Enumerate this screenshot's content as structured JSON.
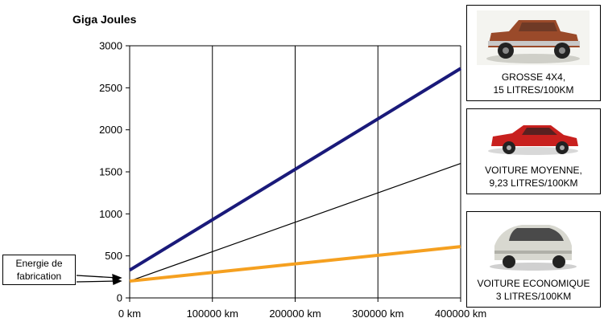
{
  "chart_data": {
    "type": "line",
    "ylabel": "Giga Joules",
    "xlabel": "",
    "ylim": [
      0,
      3000
    ],
    "xlim": [
      0,
      400000
    ],
    "y_ticks": [
      "0",
      "500",
      "1000",
      "1500",
      "2000",
      "2500",
      "3000"
    ],
    "x_ticks": [
      "0 km",
      "100000 km",
      "200000 km",
      "300000 km",
      "400000 km"
    ],
    "grid": "vertical",
    "series": [
      {
        "name": "GROSSE 4X4, 15 LITRES/100KM",
        "color": "#1a1a7a",
        "width": 4,
        "x": [
          0,
          400000
        ],
        "y": [
          330,
          2730
        ]
      },
      {
        "name": "VOITURE MOYENNE, 9,23 LITRES/100KM",
        "color": "#000000",
        "width": 1.2,
        "x": [
          0,
          400000
        ],
        "y": [
          200,
          1600
        ]
      },
      {
        "name": "VOITURE ECONOMIQUE 3 LITRES/100KM",
        "color": "#f5a020",
        "width": 4,
        "x": [
          0,
          400000
        ],
        "y": [
          200,
          610
        ]
      }
    ],
    "annotation": "Energie de fabrication"
  },
  "legend": {
    "items": [
      {
        "line1": "GROSSE 4X4,",
        "line2": "15 LITRES/100KM",
        "icon": "suv-photo",
        "color": "#9a4a2a"
      },
      {
        "line1": "VOITURE MOYENNE,",
        "line2": "9,23 LITRES/100KM",
        "icon": "red-sedan-photo",
        "color": "#c8201e"
      },
      {
        "line1": "VOITURE ECONOMIQUE",
        "line2": "3 LITRES/100KM",
        "icon": "small-silver-car-photo",
        "color": "#d8d8d0"
      }
    ]
  }
}
